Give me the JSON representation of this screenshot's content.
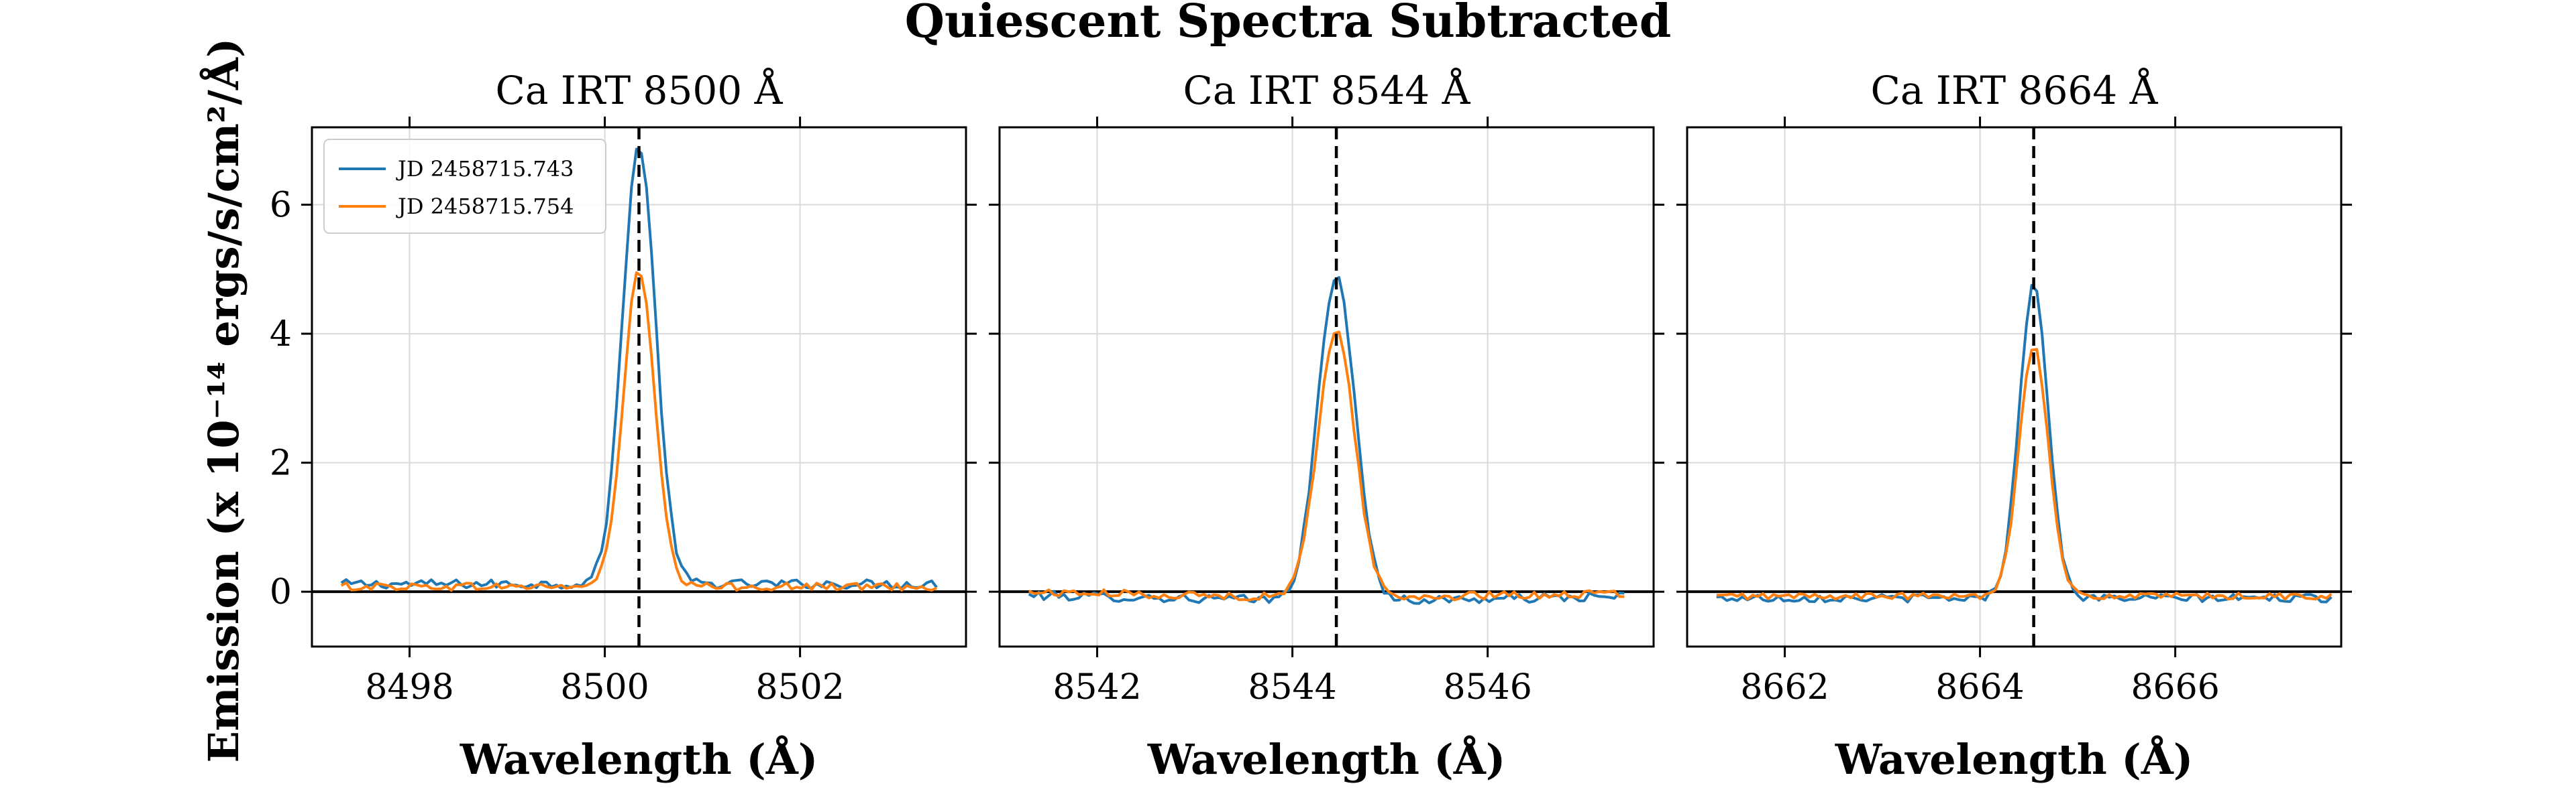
{
  "colors": {
    "series1": "#1f77b4",
    "series2": "#ff7f0e",
    "grid": "#d9d9d9",
    "axis": "#000000"
  },
  "chart_data": {
    "suptitle": "Quiescent Spectra Subtracted",
    "ylabel": "Emission (x 10⁻¹⁴ ergs/s/cm²/Å)",
    "shared_ylim": [
      -0.85,
      7.2
    ],
    "shared_yticks": [
      0,
      2,
      4,
      6
    ],
    "legend": {
      "location": "upper-left of first panel",
      "entries": [
        "JD 2458715.743",
        "JD 2458715.754"
      ]
    },
    "panels": [
      {
        "type": "line",
        "title": "Ca IRT 8500 Å",
        "xlabel": "Wavelength (Å)",
        "xlim": [
          8497.0,
          8503.7
        ],
        "xticks": [
          8498,
          8500,
          8502
        ],
        "reference_line": 8500.35,
        "series": [
          {
            "name": "JD 2458715.743",
            "center": 8500.35,
            "peak": 6.8,
            "sigma": 0.17,
            "baseline": 0.12,
            "noise": 0.07,
            "x_start": 8497.3,
            "x_end": 8503.4,
            "n": 120
          },
          {
            "name": "JD 2458715.754",
            "center": 8500.35,
            "peak": 4.9,
            "sigma": 0.16,
            "baseline": 0.08,
            "noise": 0.06,
            "x_start": 8497.3,
            "x_end": 8503.4,
            "n": 120
          }
        ]
      },
      {
        "type": "line",
        "title": "Ca IRT 8544 Å",
        "xlabel": "Wavelength (Å)",
        "xlim": [
          8541.0,
          8547.7
        ],
        "xticks": [
          8542,
          8544,
          8546
        ],
        "reference_line": 8544.45,
        "series": [
          {
            "name": "JD 2458715.743",
            "center": 8544.45,
            "peak": 5.05,
            "sigma": 0.19,
            "baseline": -0.15,
            "noise": 0.07,
            "x_start": 8541.3,
            "x_end": 8547.4,
            "n": 120
          },
          {
            "name": "JD 2458715.754",
            "center": 8544.45,
            "peak": 4.15,
            "sigma": 0.19,
            "baseline": -0.1,
            "noise": 0.06,
            "x_start": 8541.3,
            "x_end": 8547.4,
            "n": 120
          }
        ]
      },
      {
        "type": "line",
        "title": "Ca IRT 8664 Å",
        "xlabel": "Wavelength (Å)",
        "xlim": [
          8661.0,
          8667.7
        ],
        "xticks": [
          8662,
          8664,
          8666
        ],
        "reference_line": 8664.55,
        "series": [
          {
            "name": "JD 2458715.743",
            "center": 8664.55,
            "peak": 4.85,
            "sigma": 0.15,
            "baseline": -0.1,
            "noise": 0.06,
            "x_start": 8661.3,
            "x_end": 8667.6,
            "n": 120
          },
          {
            "name": "JD 2458715.754",
            "center": 8664.55,
            "peak": 3.9,
            "sigma": 0.15,
            "baseline": -0.07,
            "noise": 0.05,
            "x_start": 8661.3,
            "x_end": 8667.6,
            "n": 120
          }
        ]
      }
    ]
  }
}
